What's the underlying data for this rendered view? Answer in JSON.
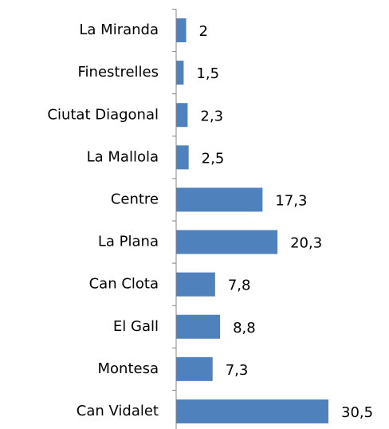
{
  "chart_data": {
    "type": "bar",
    "orientation": "horizontal",
    "categories": [
      "La Miranda",
      "Finestrelles",
      "Ciutat Diagonal",
      "La Mallola",
      "Centre",
      "La Plana",
      "Can Clota",
      "El Gall",
      "Montesa",
      "Can Vidalet"
    ],
    "values": [
      2,
      1.5,
      2.3,
      2.5,
      17.3,
      20.3,
      7.8,
      8.8,
      7.3,
      30.5
    ],
    "value_labels": [
      "2",
      "1,5",
      "2,3",
      "2,5",
      "17,3",
      "20,3",
      "7,8",
      "8,8",
      "7,3",
      "30,5"
    ],
    "color": "#4f81bd"
  }
}
